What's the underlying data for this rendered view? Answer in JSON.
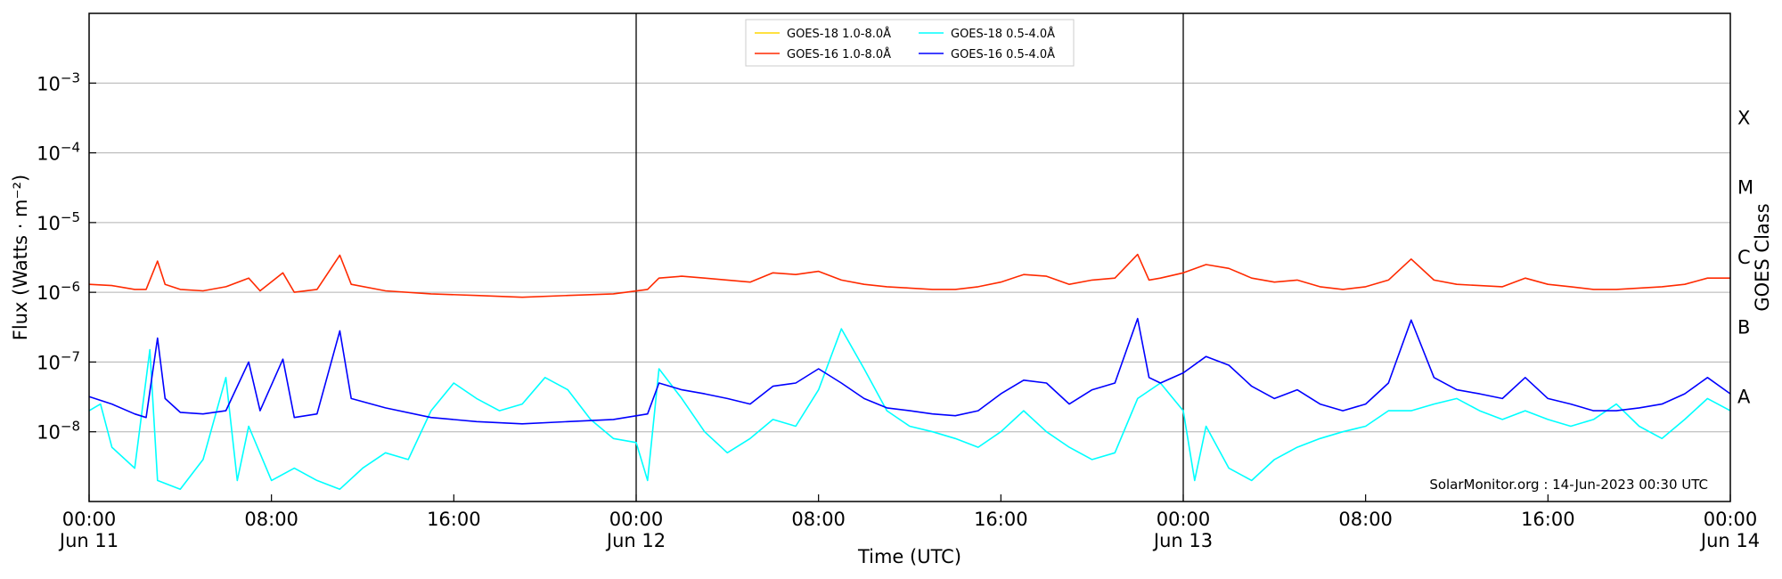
{
  "chart_data": {
    "type": "line",
    "title": "",
    "xlabel": "Time (UTC)",
    "ylabel": "Flux (Watts · m⁻²)",
    "y2label": "GOES Class",
    "y_scale": "log",
    "ylim": [
      1e-09,
      0.01
    ],
    "xlim": [
      "2023-06-11 00:00",
      "2023-06-14 00:00"
    ],
    "x_ticks": [
      {
        "time": "2023-06-11 00:00",
        "line1": "00:00",
        "line2": "Jun 11"
      },
      {
        "time": "2023-06-11 08:00",
        "line1": "08:00",
        "line2": ""
      },
      {
        "time": "2023-06-11 16:00",
        "line1": "16:00",
        "line2": ""
      },
      {
        "time": "2023-06-12 00:00",
        "line1": "00:00",
        "line2": "Jun 12"
      },
      {
        "time": "2023-06-12 08:00",
        "line1": "08:00",
        "line2": ""
      },
      {
        "time": "2023-06-12 16:00",
        "line1": "16:00",
        "line2": ""
      },
      {
        "time": "2023-06-13 00:00",
        "line1": "00:00",
        "line2": "Jun 13"
      },
      {
        "time": "2023-06-13 08:00",
        "line1": "08:00",
        "line2": ""
      },
      {
        "time": "2023-06-13 16:00",
        "line1": "16:00",
        "line2": ""
      },
      {
        "time": "2023-06-14 00:00",
        "line1": "00:00",
        "line2": "Jun 14"
      }
    ],
    "y_ticks": [
      {
        "value": 1e-08,
        "exp": "−8"
      },
      {
        "value": 1e-07,
        "exp": "−7"
      },
      {
        "value": 1e-06,
        "exp": "−6"
      },
      {
        "value": 1e-05,
        "exp": "−5"
      },
      {
        "value": 0.0001,
        "exp": "−4"
      },
      {
        "value": 0.001,
        "exp": "−3"
      }
    ],
    "grid": "horizontal",
    "day_boundaries": [
      "2023-06-12 00:00",
      "2023-06-13 00:00"
    ],
    "goes_classes": [
      {
        "label": "A",
        "lower": 1e-08
      },
      {
        "label": "B",
        "lower": 1e-07
      },
      {
        "label": "C",
        "lower": 1e-06
      },
      {
        "label": "M",
        "lower": 1e-05
      },
      {
        "label": "X",
        "lower": 0.0001
      }
    ],
    "legend_position": "top-center",
    "annotation": "SolarMonitor.org : 14-Jun-2023 00:30 UTC",
    "series": [
      {
        "name": "GOES-18 1.0-8.0Å",
        "color": "#ffd700",
        "points": []
      },
      {
        "name": "GOES-16 1.0-8.0Å",
        "color": "#ff2a00",
        "points": [
          [
            "2023-06-11 00:00",
            1.3e-06
          ],
          [
            "2023-06-11 01:00",
            1.25e-06
          ],
          [
            "2023-06-11 02:00",
            1.1e-06
          ],
          [
            "2023-06-11 02:30",
            1.1e-06
          ],
          [
            "2023-06-11 03:00",
            2.8e-06
          ],
          [
            "2023-06-11 03:20",
            1.3e-06
          ],
          [
            "2023-06-11 04:00",
            1.1e-06
          ],
          [
            "2023-06-11 05:00",
            1.05e-06
          ],
          [
            "2023-06-11 06:00",
            1.2e-06
          ],
          [
            "2023-06-11 07:00",
            1.6e-06
          ],
          [
            "2023-06-11 07:30",
            1.05e-06
          ],
          [
            "2023-06-11 08:30",
            1.9e-06
          ],
          [
            "2023-06-11 09:00",
            1e-06
          ],
          [
            "2023-06-11 10:00",
            1.1e-06
          ],
          [
            "2023-06-11 11:00",
            3.4e-06
          ],
          [
            "2023-06-11 11:30",
            1.3e-06
          ],
          [
            "2023-06-11 13:00",
            1.05e-06
          ],
          [
            "2023-06-11 15:00",
            9.5e-07
          ],
          [
            "2023-06-11 17:00",
            9e-07
          ],
          [
            "2023-06-11 19:00",
            8.5e-07
          ],
          [
            "2023-06-11 21:00",
            9e-07
          ],
          [
            "2023-06-11 23:00",
            9.5e-07
          ],
          [
            "2023-06-12 00:30",
            1.1e-06
          ],
          [
            "2023-06-12 01:00",
            1.6e-06
          ],
          [
            "2023-06-12 02:00",
            1.7e-06
          ],
          [
            "2023-06-12 03:00",
            1.6e-06
          ],
          [
            "2023-06-12 04:00",
            1.5e-06
          ],
          [
            "2023-06-12 05:00",
            1.4e-06
          ],
          [
            "2023-06-12 06:00",
            1.9e-06
          ],
          [
            "2023-06-12 07:00",
            1.8e-06
          ],
          [
            "2023-06-12 08:00",
            2e-06
          ],
          [
            "2023-06-12 09:00",
            1.5e-06
          ],
          [
            "2023-06-12 10:00",
            1.3e-06
          ],
          [
            "2023-06-12 11:00",
            1.2e-06
          ],
          [
            "2023-06-12 12:00",
            1.15e-06
          ],
          [
            "2023-06-12 13:00",
            1.1e-06
          ],
          [
            "2023-06-12 14:00",
            1.1e-06
          ],
          [
            "2023-06-12 15:00",
            1.2e-06
          ],
          [
            "2023-06-12 16:00",
            1.4e-06
          ],
          [
            "2023-06-12 17:00",
            1.8e-06
          ],
          [
            "2023-06-12 18:00",
            1.7e-06
          ],
          [
            "2023-06-12 19:00",
            1.3e-06
          ],
          [
            "2023-06-12 20:00",
            1.5e-06
          ],
          [
            "2023-06-12 21:00",
            1.6e-06
          ],
          [
            "2023-06-12 22:00",
            3.5e-06
          ],
          [
            "2023-06-12 22:30",
            1.5e-06
          ],
          [
            "2023-06-12 23:00",
            1.6e-06
          ],
          [
            "2023-06-13 00:00",
            1.9e-06
          ],
          [
            "2023-06-13 01:00",
            2.5e-06
          ],
          [
            "2023-06-13 02:00",
            2.2e-06
          ],
          [
            "2023-06-13 03:00",
            1.6e-06
          ],
          [
            "2023-06-13 04:00",
            1.4e-06
          ],
          [
            "2023-06-13 05:00",
            1.5e-06
          ],
          [
            "2023-06-13 06:00",
            1.2e-06
          ],
          [
            "2023-06-13 07:00",
            1.1e-06
          ],
          [
            "2023-06-13 08:00",
            1.2e-06
          ],
          [
            "2023-06-13 09:00",
            1.5e-06
          ],
          [
            "2023-06-13 10:00",
            3e-06
          ],
          [
            "2023-06-13 11:00",
            1.5e-06
          ],
          [
            "2023-06-13 12:00",
            1.3e-06
          ],
          [
            "2023-06-13 13:00",
            1.25e-06
          ],
          [
            "2023-06-13 14:00",
            1.2e-06
          ],
          [
            "2023-06-13 15:00",
            1.6e-06
          ],
          [
            "2023-06-13 16:00",
            1.3e-06
          ],
          [
            "2023-06-13 17:00",
            1.2e-06
          ],
          [
            "2023-06-13 18:00",
            1.1e-06
          ],
          [
            "2023-06-13 19:00",
            1.1e-06
          ],
          [
            "2023-06-13 20:00",
            1.15e-06
          ],
          [
            "2023-06-13 21:00",
            1.2e-06
          ],
          [
            "2023-06-13 22:00",
            1.3e-06
          ],
          [
            "2023-06-13 23:00",
            1.6e-06
          ],
          [
            "2023-06-14 00:00",
            1.6e-06
          ]
        ]
      },
      {
        "name": "GOES-18 0.5-4.0Å",
        "color": "#00ffff",
        "points": [
          [
            "2023-06-11 00:00",
            2e-08
          ],
          [
            "2023-06-11 00:30",
            2.5e-08
          ],
          [
            "2023-06-11 01:00",
            6e-09
          ],
          [
            "2023-06-11 02:00",
            3e-09
          ],
          [
            "2023-06-11 02:40",
            1.5e-07
          ],
          [
            "2023-06-11 03:00",
            2e-09
          ],
          [
            "2023-06-11 04:00",
            1.5e-09
          ],
          [
            "2023-06-11 05:00",
            4e-09
          ],
          [
            "2023-06-11 06:00",
            6e-08
          ],
          [
            "2023-06-11 06:30",
            2e-09
          ],
          [
            "2023-06-11 07:00",
            1.2e-08
          ],
          [
            "2023-06-11 08:00",
            2e-09
          ],
          [
            "2023-06-11 09:00",
            3e-09
          ],
          [
            "2023-06-11 10:00",
            2e-09
          ],
          [
            "2023-06-11 11:00",
            1.5e-09
          ],
          [
            "2023-06-11 12:00",
            3e-09
          ],
          [
            "2023-06-11 13:00",
            5e-09
          ],
          [
            "2023-06-11 14:00",
            4e-09
          ],
          [
            "2023-06-11 15:00",
            2e-08
          ],
          [
            "2023-06-11 16:00",
            5e-08
          ],
          [
            "2023-06-11 17:00",
            3e-08
          ],
          [
            "2023-06-11 18:00",
            2e-08
          ],
          [
            "2023-06-11 19:00",
            2.5e-08
          ],
          [
            "2023-06-11 20:00",
            6e-08
          ],
          [
            "2023-06-11 21:00",
            4e-08
          ],
          [
            "2023-06-11 22:00",
            1.5e-08
          ],
          [
            "2023-06-11 23:00",
            8e-09
          ],
          [
            "2023-06-12 00:00",
            7e-09
          ],
          [
            "2023-06-12 00:30",
            2e-09
          ],
          [
            "2023-06-12 01:00",
            8e-08
          ],
          [
            "2023-06-12 02:00",
            3e-08
          ],
          [
            "2023-06-12 03:00",
            1e-08
          ],
          [
            "2023-06-12 04:00",
            5e-09
          ],
          [
            "2023-06-12 05:00",
            8e-09
          ],
          [
            "2023-06-12 06:00",
            1.5e-08
          ],
          [
            "2023-06-12 07:00",
            1.2e-08
          ],
          [
            "2023-06-12 08:00",
            4e-08
          ],
          [
            "2023-06-12 09:00",
            3e-07
          ],
          [
            "2023-06-12 10:00",
            8e-08
          ],
          [
            "2023-06-12 11:00",
            2e-08
          ],
          [
            "2023-06-12 12:00",
            1.2e-08
          ],
          [
            "2023-06-12 13:00",
            1e-08
          ],
          [
            "2023-06-12 14:00",
            8e-09
          ],
          [
            "2023-06-12 15:00",
            6e-09
          ],
          [
            "2023-06-12 16:00",
            1e-08
          ],
          [
            "2023-06-12 17:00",
            2e-08
          ],
          [
            "2023-06-12 18:00",
            1e-08
          ],
          [
            "2023-06-12 19:00",
            6e-09
          ],
          [
            "2023-06-12 20:00",
            4e-09
          ],
          [
            "2023-06-12 21:00",
            5e-09
          ],
          [
            "2023-06-12 22:00",
            3e-08
          ],
          [
            "2023-06-12 23:00",
            5e-08
          ],
          [
            "2023-06-13 00:00",
            2e-08
          ],
          [
            "2023-06-13 00:30",
            2e-09
          ],
          [
            "2023-06-13 01:00",
            1.2e-08
          ],
          [
            "2023-06-13 02:00",
            3e-09
          ],
          [
            "2023-06-13 03:00",
            2e-09
          ],
          [
            "2023-06-13 04:00",
            4e-09
          ],
          [
            "2023-06-13 05:00",
            6e-09
          ],
          [
            "2023-06-13 06:00",
            8e-09
          ],
          [
            "2023-06-13 07:00",
            1e-08
          ],
          [
            "2023-06-13 08:00",
            1.2e-08
          ],
          [
            "2023-06-13 09:00",
            2e-08
          ],
          [
            "2023-06-13 10:00",
            2e-08
          ],
          [
            "2023-06-13 11:00",
            2.5e-08
          ],
          [
            "2023-06-13 12:00",
            3e-08
          ],
          [
            "2023-06-13 13:00",
            2e-08
          ],
          [
            "2023-06-13 14:00",
            1.5e-08
          ],
          [
            "2023-06-13 15:00",
            2e-08
          ],
          [
            "2023-06-13 16:00",
            1.5e-08
          ],
          [
            "2023-06-13 17:00",
            1.2e-08
          ],
          [
            "2023-06-13 18:00",
            1.5e-08
          ],
          [
            "2023-06-13 19:00",
            2.5e-08
          ],
          [
            "2023-06-13 20:00",
            1.2e-08
          ],
          [
            "2023-06-13 21:00",
            8e-09
          ],
          [
            "2023-06-13 22:00",
            1.5e-08
          ],
          [
            "2023-06-13 23:00",
            3e-08
          ],
          [
            "2023-06-14 00:00",
            2e-08
          ]
        ]
      },
      {
        "name": "GOES-16 0.5-4.0Å",
        "color": "#0000ff",
        "points": [
          [
            "2023-06-11 00:00",
            3.2e-08
          ],
          [
            "2023-06-11 01:00",
            2.5e-08
          ],
          [
            "2023-06-11 02:00",
            1.8e-08
          ],
          [
            "2023-06-11 02:30",
            1.6e-08
          ],
          [
            "2023-06-11 03:00",
            2.2e-07
          ],
          [
            "2023-06-11 03:20",
            3e-08
          ],
          [
            "2023-06-11 04:00",
            1.9e-08
          ],
          [
            "2023-06-11 05:00",
            1.8e-08
          ],
          [
            "2023-06-11 06:00",
            2e-08
          ],
          [
            "2023-06-11 07:00",
            1e-07
          ],
          [
            "2023-06-11 07:30",
            2e-08
          ],
          [
            "2023-06-11 08:30",
            1.1e-07
          ],
          [
            "2023-06-11 09:00",
            1.6e-08
          ],
          [
            "2023-06-11 10:00",
            1.8e-08
          ],
          [
            "2023-06-11 11:00",
            2.8e-07
          ],
          [
            "2023-06-11 11:30",
            3e-08
          ],
          [
            "2023-06-11 13:00",
            2.2e-08
          ],
          [
            "2023-06-11 15:00",
            1.6e-08
          ],
          [
            "2023-06-11 17:00",
            1.4e-08
          ],
          [
            "2023-06-11 19:00",
            1.3e-08
          ],
          [
            "2023-06-11 21:00",
            1.4e-08
          ],
          [
            "2023-06-11 23:00",
            1.5e-08
          ],
          [
            "2023-06-12 00:30",
            1.8e-08
          ],
          [
            "2023-06-12 01:00",
            5e-08
          ],
          [
            "2023-06-12 02:00",
            4e-08
          ],
          [
            "2023-06-12 03:00",
            3.5e-08
          ],
          [
            "2023-06-12 04:00",
            3e-08
          ],
          [
            "2023-06-12 05:00",
            2.5e-08
          ],
          [
            "2023-06-12 06:00",
            4.5e-08
          ],
          [
            "2023-06-12 07:00",
            5e-08
          ],
          [
            "2023-06-12 08:00",
            8e-08
          ],
          [
            "2023-06-12 09:00",
            5e-08
          ],
          [
            "2023-06-12 10:00",
            3e-08
          ],
          [
            "2023-06-12 11:00",
            2.2e-08
          ],
          [
            "2023-06-12 12:00",
            2e-08
          ],
          [
            "2023-06-12 13:00",
            1.8e-08
          ],
          [
            "2023-06-12 14:00",
            1.7e-08
          ],
          [
            "2023-06-12 15:00",
            2e-08
          ],
          [
            "2023-06-12 16:00",
            3.5e-08
          ],
          [
            "2023-06-12 17:00",
            5.5e-08
          ],
          [
            "2023-06-12 18:00",
            5e-08
          ],
          [
            "2023-06-12 19:00",
            2.5e-08
          ],
          [
            "2023-06-12 20:00",
            4e-08
          ],
          [
            "2023-06-12 21:00",
            5e-08
          ],
          [
            "2023-06-12 22:00",
            4.2e-07
          ],
          [
            "2023-06-12 22:30",
            6e-08
          ],
          [
            "2023-06-12 23:00",
            5e-08
          ],
          [
            "2023-06-13 00:00",
            7e-08
          ],
          [
            "2023-06-13 01:00",
            1.2e-07
          ],
          [
            "2023-06-13 02:00",
            9e-08
          ],
          [
            "2023-06-13 03:00",
            4.5e-08
          ],
          [
            "2023-06-13 04:00",
            3e-08
          ],
          [
            "2023-06-13 05:00",
            4e-08
          ],
          [
            "2023-06-13 06:00",
            2.5e-08
          ],
          [
            "2023-06-13 07:00",
            2e-08
          ],
          [
            "2023-06-13 08:00",
            2.5e-08
          ],
          [
            "2023-06-13 09:00",
            5e-08
          ],
          [
            "2023-06-13 10:00",
            4e-07
          ],
          [
            "2023-06-13 11:00",
            6e-08
          ],
          [
            "2023-06-13 12:00",
            4e-08
          ],
          [
            "2023-06-13 13:00",
            3.5e-08
          ],
          [
            "2023-06-13 14:00",
            3e-08
          ],
          [
            "2023-06-13 15:00",
            6e-08
          ],
          [
            "2023-06-13 16:00",
            3e-08
          ],
          [
            "2023-06-13 17:00",
            2.5e-08
          ],
          [
            "2023-06-13 18:00",
            2e-08
          ],
          [
            "2023-06-13 19:00",
            2e-08
          ],
          [
            "2023-06-13 20:00",
            2.2e-08
          ],
          [
            "2023-06-13 21:00",
            2.5e-08
          ],
          [
            "2023-06-13 22:00",
            3.5e-08
          ],
          [
            "2023-06-13 23:00",
            6e-08
          ],
          [
            "2023-06-14 00:00",
            3.5e-08
          ]
        ]
      }
    ]
  }
}
